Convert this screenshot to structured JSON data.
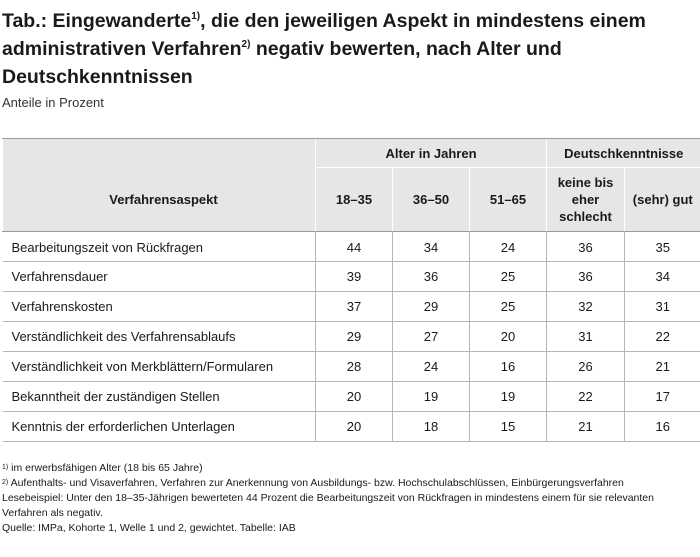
{
  "title": {
    "part1": "Tab.: Eingewanderte",
    "sup1": "1)",
    "part2": ", die den jeweiligen Aspekt in mindestens einem administrativen Verfahren",
    "sup2": "2)",
    "part3": " negativ bewerten, nach Alter und Deutschkenntnissen"
  },
  "subtitle": "Anteile in Prozent",
  "table": {
    "group_age": "Alter in Jahren",
    "group_lang": "Deutschkenntnisse",
    "col_aspect": "Verfahrensaspekt",
    "col_18_35": "18–35",
    "col_36_50": "36–50",
    "col_51_65": "51–65",
    "col_keine": "keine bis eher schlecht",
    "col_gut": "(sehr) gut",
    "rows": [
      {
        "aspect": "Bearbeitungszeit von Rückfragen",
        "a": "44",
        "b": "34",
        "c": "24",
        "d": "36",
        "e": "35"
      },
      {
        "aspect": "Verfahrensdauer",
        "a": "39",
        "b": "36",
        "c": "25",
        "d": "36",
        "e": "34"
      },
      {
        "aspect": "Verfahrenskosten",
        "a": "37",
        "b": "29",
        "c": "25",
        "d": "32",
        "e": "31"
      },
      {
        "aspect": "Verständlichkeit des Verfahrensablaufs",
        "a": "29",
        "b": "27",
        "c": "20",
        "d": "31",
        "e": "22"
      },
      {
        "aspect": "Verständlichkeit von Merkblättern/Formularen",
        "a": "28",
        "b": "24",
        "c": "16",
        "d": "26",
        "e": "21"
      },
      {
        "aspect": "Bekanntheit der zuständigen Stellen",
        "a": "20",
        "b": "19",
        "c": "19",
        "d": "22",
        "e": "17"
      },
      {
        "aspect": "Kenntnis der erforderlichen Unterlagen",
        "a": "20",
        "b": "18",
        "c": "15",
        "d": "21",
        "e": "16"
      }
    ]
  },
  "footnotes": {
    "fn1_sup": "1)",
    "fn1": " im erwerbsfähigen Alter (18 bis 65 Jahre)",
    "fn2_sup": "2)",
    "fn2": " Aufenthalts- und Visaverfahren, Verfahren zur Anerkennung von Ausbildungs- bzw. Hochschulabschlüssen, Einbürgerungsverfahren",
    "reading_example": "Lesebeispiel: Unter den 18–35-Jährigen bewerteten 44 Prozent die Bearbeitungszeit von Rückfragen in mindestens einem für sie relevanten Verfahren als negativ.",
    "source": "Quelle: IMPa, Kohorte 1, Welle 1 und 2, gewichtet. Tabelle: IAB"
  }
}
